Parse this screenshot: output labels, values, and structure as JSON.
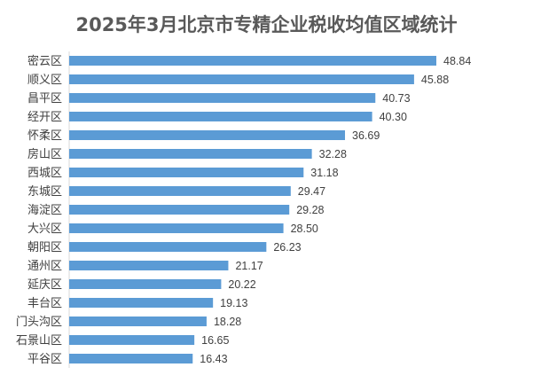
{
  "chart_data": {
    "type": "bar",
    "orientation": "horizontal",
    "title": "2025年3月北京市专精企业税收均值区域统计",
    "categories": [
      "密云区",
      "顺义区",
      "昌平区",
      "经开区",
      "怀柔区",
      "房山区",
      "西城区",
      "东城区",
      "海淀区",
      "大兴区",
      "朝阳区",
      "通州区",
      "延庆区",
      "丰台区",
      "门头沟区",
      "石景山区",
      "平谷区"
    ],
    "values": [
      48.84,
      45.88,
      40.73,
      40.3,
      36.69,
      32.28,
      31.18,
      29.47,
      29.28,
      28.5,
      26.23,
      21.17,
      20.22,
      19.13,
      18.28,
      16.65,
      16.43
    ],
    "value_labels": [
      "48.84",
      "45.88",
      "40.73",
      "40.30",
      "36.69",
      "32.28",
      "31.18",
      "29.47",
      "29.28",
      "28.50",
      "26.23",
      "21.17",
      "20.22",
      "19.13",
      "18.28",
      "16.65",
      "16.43"
    ],
    "xlabel": "",
    "ylabel": "",
    "xlim": [
      0,
      50
    ],
    "grid": false,
    "legend": "none",
    "bar_color": "#5b9bd5"
  }
}
